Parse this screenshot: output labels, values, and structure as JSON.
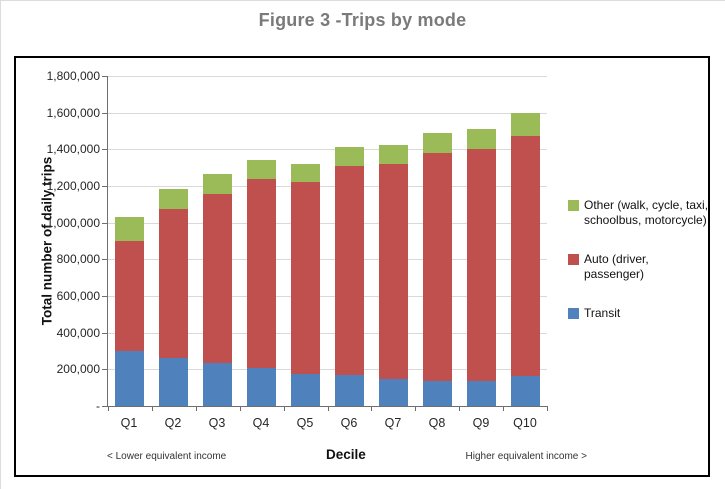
{
  "figure_title": "Figure 3 -Trips by mode",
  "chart_data": {
    "type": "bar",
    "stacked": true,
    "title": "Figure 3 -Trips by mode",
    "xlabel": "Decile",
    "ylabel": "Total number of daily trips",
    "ylim": [
      0,
      1800000
    ],
    "ytick_step": 200000,
    "ytick_labels": [
      "-",
      "200,000",
      "400,000",
      "600,000",
      "800,000",
      "1,000,000",
      "1,200,000",
      "1,400,000",
      "1,600,000",
      "1,800,000"
    ],
    "grid": true,
    "legend_position": "right",
    "categories": [
      "Q1",
      "Q2",
      "Q3",
      "Q4",
      "Q5",
      "Q6",
      "Q7",
      "Q8",
      "Q9",
      "Q10"
    ],
    "series": [
      {
        "name": "Transit",
        "color": "#4F81BD",
        "values": [
          300000,
          260000,
          235000,
          210000,
          175000,
          170000,
          150000,
          135000,
          135000,
          165000
        ]
      },
      {
        "name": "Auto (driver, passenger)",
        "color": "#C0504D",
        "values": [
          600000,
          815000,
          920000,
          1030000,
          1045000,
          1140000,
          1170000,
          1245000,
          1265000,
          1310000
        ]
      },
      {
        "name": "Other (walk, cycle, taxi, schoolbus, motorcycle)",
        "color": "#9BBB59",
        "values": [
          130000,
          110000,
          110000,
          100000,
          100000,
          105000,
          105000,
          110000,
          110000,
          125000
        ]
      }
    ]
  },
  "x_axis_annotations": {
    "left": "< Lower equivalent income",
    "right": "Higher equivalent income >"
  },
  "legend": {
    "items": [
      {
        "label": "Other (walk, cycle, taxi, schoolbus, motorcycle)",
        "color": "#9BBB59"
      },
      {
        "label": "Auto (driver, passenger)",
        "color": "#C0504D"
      },
      {
        "label": "Transit",
        "color": "#4F81BD"
      }
    ]
  }
}
